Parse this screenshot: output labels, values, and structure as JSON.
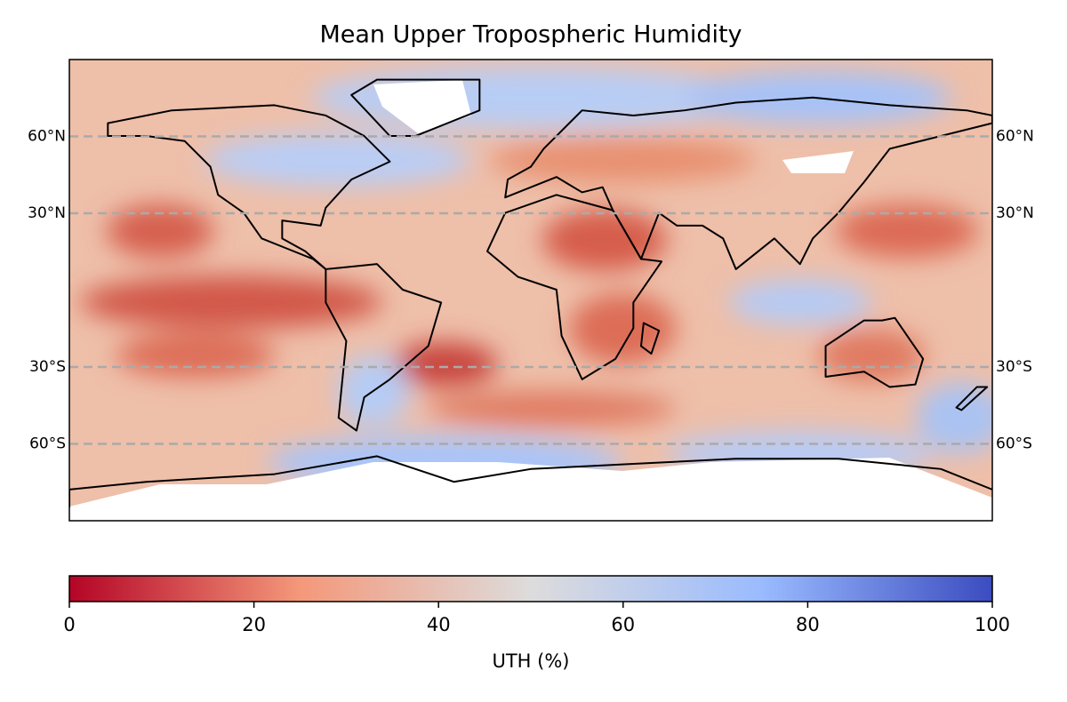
{
  "chart_data": {
    "type": "map",
    "title": "Mean Upper Tropospheric Humidity",
    "ylim": [
      -90,
      90
    ],
    "yticks": [
      {
        "value": 60,
        "label": "60°N"
      },
      {
        "value": 30,
        "label": "30°N"
      },
      {
        "value": -30,
        "label": "30°S"
      },
      {
        "value": -60,
        "label": "60°S"
      }
    ],
    "grid": true,
    "colorbar": {
      "label": "UTH (%)",
      "lim": [
        0,
        100
      ],
      "ticks": [
        0,
        20,
        40,
        60,
        80,
        100
      ],
      "colors": [
        "#b40426",
        "#f4987a",
        "#dddcdc",
        "#9abbff",
        "#3b4cc0"
      ]
    }
  }
}
